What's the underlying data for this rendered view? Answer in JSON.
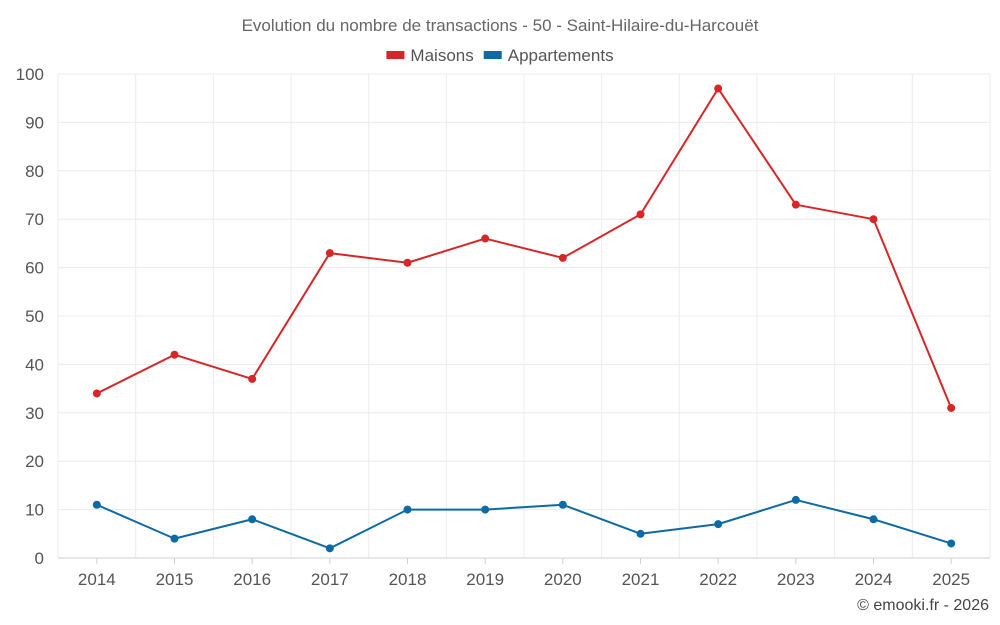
{
  "chart_data": {
    "type": "line",
    "title": "Evolution du nombre de transactions - 50 - Saint-Hilaire-du-Harcouët",
    "categories": [
      "2014",
      "2015",
      "2016",
      "2017",
      "2018",
      "2019",
      "2020",
      "2021",
      "2022",
      "2023",
      "2024",
      "2025"
    ],
    "series": [
      {
        "name": "Maisons",
        "color": "#d62728",
        "values": [
          34,
          42,
          37,
          63,
          61,
          66,
          62,
          71,
          97,
          73,
          70,
          31
        ]
      },
      {
        "name": "Appartements",
        "color": "#0e6aa3",
        "values": [
          11,
          4,
          8,
          2,
          10,
          10,
          11,
          5,
          7,
          12,
          8,
          3
        ]
      }
    ],
    "ylim": [
      0,
      100
    ],
    "yticks": [
      0,
      10,
      20,
      30,
      40,
      50,
      60,
      70,
      80,
      90,
      100
    ],
    "xlabel": "",
    "ylabel": "",
    "grid": true,
    "legend_position": "top-center"
  },
  "credit": "© emooki.fr - 2026"
}
